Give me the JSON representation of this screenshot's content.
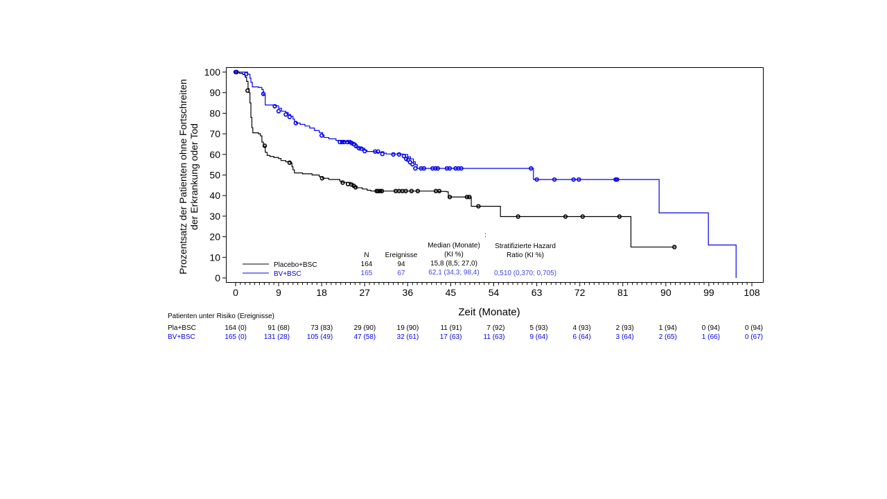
{
  "chart_data": {
    "type": "line",
    "subtype": "kaplan-meier",
    "title": "",
    "xlabel": "Zeit (Monate)",
    "ylabel": [
      "Prozentsatz der Patienten ohne Fortschreiten",
      "der Erkrankung oder Tod"
    ],
    "xlim": [
      0,
      108
    ],
    "ylim": [
      0,
      100
    ],
    "xticks": [
      "0",
      "9",
      "18",
      "27",
      "36",
      "45",
      "54",
      "63",
      "72",
      "81",
      "90",
      "99",
      "108"
    ],
    "yticks": [
      "0",
      "10",
      "20",
      "30",
      "40",
      "50",
      "60",
      "70",
      "80",
      "90",
      "100"
    ],
    "grid": false,
    "legend_position": "bottom-left",
    "series": [
      {
        "name": "Placebo+BSC",
        "color": "#000000",
        "steps": [
          [
            0,
            100
          ],
          [
            0.8,
            99.4
          ],
          [
            1.5,
            98.8
          ],
          [
            2.0,
            97.5
          ],
          [
            2.3,
            95.5
          ],
          [
            2.6,
            92
          ],
          [
            2.8,
            90
          ],
          [
            3.0,
            85
          ],
          [
            3.2,
            78
          ],
          [
            3.4,
            73
          ],
          [
            3.6,
            70.5
          ],
          [
            4.8,
            70
          ],
          [
            5.2,
            69
          ],
          [
            5.5,
            66
          ],
          [
            5.8,
            64
          ],
          [
            6.2,
            61
          ],
          [
            6.6,
            59.5
          ],
          [
            7.2,
            59
          ],
          [
            8,
            58.5
          ],
          [
            9,
            58
          ],
          [
            9.5,
            57
          ],
          [
            10.5,
            56.4
          ],
          [
            11.5,
            55.8
          ],
          [
            11.8,
            54
          ],
          [
            12,
            52.5
          ],
          [
            12.3,
            51
          ],
          [
            14,
            50.6
          ],
          [
            16,
            50
          ],
          [
            17.5,
            49.2
          ],
          [
            18.2,
            48.4
          ],
          [
            19.5,
            47.8
          ],
          [
            21.8,
            47
          ],
          [
            22.2,
            46.4
          ],
          [
            24,
            45.6
          ],
          [
            24.6,
            44.5
          ],
          [
            25.2,
            43.8
          ],
          [
            26.5,
            43.2
          ],
          [
            27.5,
            42.6
          ],
          [
            28.3,
            42.2
          ],
          [
            42.5,
            42
          ],
          [
            44.2,
            41.8
          ],
          [
            44.5,
            39.3
          ],
          [
            49.2,
            39.3
          ],
          [
            49.3,
            34.8
          ],
          [
            55.2,
            34.8
          ],
          [
            55.4,
            29.8
          ],
          [
            82.5,
            29.8
          ],
          [
            82.7,
            15
          ],
          [
            92,
            15
          ]
        ],
        "censor": [
          [
            0.2,
            100
          ],
          [
            2.5,
            91
          ],
          [
            6.1,
            64.2
          ],
          [
            11.3,
            56
          ],
          [
            18.1,
            48.4
          ],
          [
            22.4,
            46.3
          ],
          [
            23.5,
            45.6
          ],
          [
            24.2,
            45.4
          ],
          [
            24.7,
            44.8
          ],
          [
            25.1,
            44
          ],
          [
            29.5,
            42.2
          ],
          [
            29.8,
            42.2
          ],
          [
            30.2,
            42.2
          ],
          [
            30.6,
            42.2
          ],
          [
            33.5,
            42.2
          ],
          [
            34.2,
            42.2
          ],
          [
            34.9,
            42.2
          ],
          [
            35.6,
            42.2
          ],
          [
            36.8,
            42.2
          ],
          [
            38.1,
            42.2
          ],
          [
            41.9,
            42.2
          ],
          [
            42.6,
            42.2
          ],
          [
            44.8,
            39.3
          ],
          [
            48.4,
            39.3
          ],
          [
            48.9,
            39.3
          ],
          [
            50.8,
            34.8
          ],
          [
            59.1,
            29.8
          ],
          [
            69.0,
            29.8
          ],
          [
            72.6,
            29.8
          ],
          [
            80.3,
            29.8
          ],
          [
            91.8,
            15
          ]
        ]
      },
      {
        "name": "BV+BSC",
        "color": "#0000ee",
        "steps": [
          [
            0,
            100
          ],
          [
            2.5,
            99
          ],
          [
            3.0,
            97
          ],
          [
            3.2,
            95
          ],
          [
            3.5,
            92.8
          ],
          [
            4.8,
            92.5
          ],
          [
            5.5,
            91.5
          ],
          [
            5.8,
            89
          ],
          [
            6.2,
            84
          ],
          [
            8.3,
            83.6
          ],
          [
            9,
            82.4
          ],
          [
            9.6,
            81
          ],
          [
            10.5,
            80.4
          ],
          [
            11,
            79.4
          ],
          [
            11.5,
            78.6
          ],
          [
            12,
            77.2
          ],
          [
            12.3,
            76
          ],
          [
            12.7,
            75.2
          ],
          [
            13.5,
            74.6
          ],
          [
            14.5,
            73.8
          ],
          [
            15.5,
            72.8
          ],
          [
            16.5,
            71.6
          ],
          [
            17.5,
            70.6
          ],
          [
            18.2,
            69.4
          ],
          [
            18.5,
            68.2
          ],
          [
            19.5,
            67.6
          ],
          [
            21,
            66.8
          ],
          [
            22.5,
            66.2
          ],
          [
            24.5,
            65.4
          ],
          [
            25.2,
            63.6
          ],
          [
            25.8,
            63
          ],
          [
            27,
            62
          ],
          [
            27.5,
            61.4
          ],
          [
            29.4,
            61
          ],
          [
            30.5,
            61.3
          ],
          [
            31,
            60.6
          ],
          [
            31.5,
            60.2
          ],
          [
            35,
            60
          ],
          [
            36,
            58.8
          ],
          [
            36.6,
            57.8
          ],
          [
            37.2,
            56.4
          ],
          [
            37.6,
            55
          ],
          [
            38,
            53.2
          ],
          [
            62,
            53.2
          ],
          [
            62.3,
            47.8
          ],
          [
            88.4,
            47.8
          ],
          [
            88.6,
            31.6
          ],
          [
            98.7,
            31.6
          ],
          [
            98.9,
            16
          ],
          [
            104.7,
            16
          ],
          [
            104.7,
            0
          ]
        ],
        "censor": [
          [
            0,
            100
          ],
          [
            2.2,
            99
          ],
          [
            5.8,
            89.4
          ],
          [
            8.2,
            83.4
          ],
          [
            9.0,
            81
          ],
          [
            10.5,
            79.4
          ],
          [
            11.3,
            78.2
          ],
          [
            12.6,
            75.2
          ],
          [
            18.0,
            69.2
          ],
          [
            21.8,
            66
          ],
          [
            22.3,
            66
          ],
          [
            22.7,
            66
          ],
          [
            23.4,
            66
          ],
          [
            23.9,
            66
          ],
          [
            24.3,
            65.5
          ],
          [
            24.7,
            65
          ],
          [
            25.2,
            64
          ],
          [
            25.8,
            63
          ],
          [
            26.3,
            62.8
          ],
          [
            27.0,
            61.6
          ],
          [
            29.2,
            61.4
          ],
          [
            29.8,
            61.4
          ],
          [
            30.7,
            60.2
          ],
          [
            33.0,
            60
          ],
          [
            34.2,
            60
          ],
          [
            35.2,
            59.2
          ],
          [
            35.7,
            57.8
          ],
          [
            36.1,
            57.4
          ],
          [
            36.5,
            56.2
          ],
          [
            37.0,
            55.2
          ],
          [
            37.6,
            53.2
          ],
          [
            38.8,
            53.2
          ],
          [
            39.4,
            53.2
          ],
          [
            41.2,
            53.2
          ],
          [
            41.8,
            53.2
          ],
          [
            42.3,
            53.2
          ],
          [
            44.2,
            53.2
          ],
          [
            44.8,
            53.2
          ],
          [
            46.0,
            53.2
          ],
          [
            46.6,
            53.2
          ],
          [
            47.2,
            53.2
          ],
          [
            61.8,
            53.2
          ],
          [
            63.0,
            47.8
          ],
          [
            66.7,
            47.8
          ],
          [
            70.7,
            47.8
          ],
          [
            71.8,
            47.8
          ],
          [
            79.5,
            47.8
          ],
          [
            79.8,
            47.8
          ]
        ]
      }
    ],
    "summary_table": {
      "headers": {
        "n": "N",
        "events": "Ereignisse",
        "median_l1": "Median (Monate)",
        "median_l2": "(KI %)",
        "hr_l1": "Stratifizierte Hazard",
        "hr_l2": "Ratio (KI %)"
      },
      "colon": ":",
      "rows": [
        {
          "label": "Placebo+BSC",
          "n": "164",
          "events": "94",
          "median": "15,8 (8,5; 27,0)",
          "hr": ""
        },
        {
          "label": "BV+BSC",
          "n": "165",
          "events": "67",
          "median": "62,1 (34,3; 98,4)",
          "hr": "0,510 (0,370; 0,705)"
        }
      ]
    },
    "risk_table": {
      "title": "Patienten unter Risiko (Ereignisse)",
      "rows": [
        {
          "label": "Pla+BSC",
          "values": [
            "164 (0)",
            "91 (68)",
            "73 (83)",
            "29 (90)",
            "19 (90)",
            "11 (91)",
            "7 (92)",
            "5 (93)",
            "4 (93)",
            "2 (93)",
            "1 (94)",
            "0 (94)",
            "0 (94)"
          ]
        },
        {
          "label": "BV+BSC",
          "values": [
            "165 (0)",
            "131 (28)",
            "105 (49)",
            "47 (58)",
            "32 (61)",
            "17 (63)",
            "11 (63)",
            "9 (64)",
            "6 (64)",
            "3 (64)",
            "2 (65)",
            "1 (66)",
            "0 (67)"
          ]
        }
      ]
    }
  }
}
